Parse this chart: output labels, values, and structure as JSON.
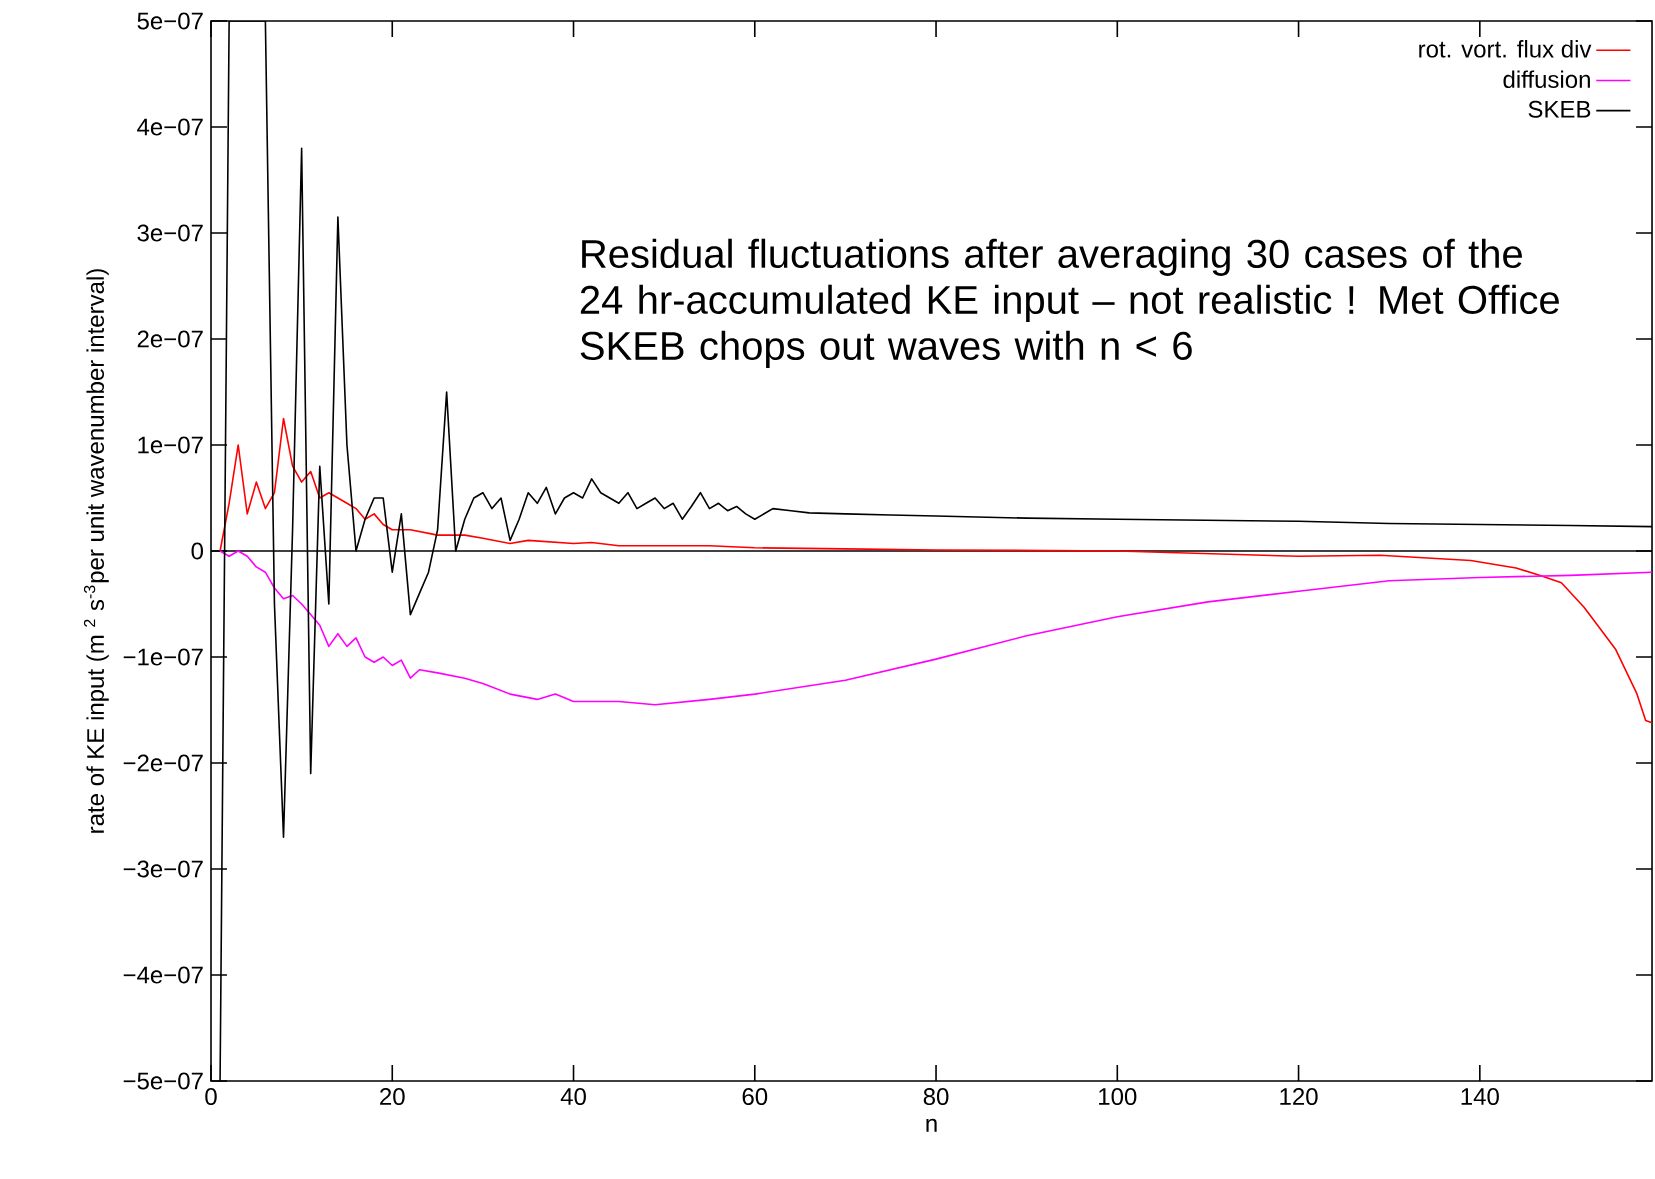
{
  "chart_data": {
    "type": "line",
    "xlabel": "n",
    "ylabel": "rate of KE input (m $^{2}$ s$^{-3}$per unit wavenumber interval)",
    "xlim": [
      0,
      159
    ],
    "xticks": [
      0,
      20,
      40,
      60,
      80,
      100,
      120,
      140
    ],
    "ylim": [
      -5e-07,
      5e-07
    ],
    "yticks": [
      {
        "value": -5e-07,
        "label": "−5e−07"
      },
      {
        "value": -4e-07,
        "label": "−4e−07"
      },
      {
        "value": -3e-07,
        "label": "−3e−07"
      },
      {
        "value": -2e-07,
        "label": "−2e−07"
      },
      {
        "value": -1e-07,
        "label": "−1e−07"
      },
      {
        "value": 0,
        "label": "0"
      },
      {
        "value": 1e-07,
        "label": "1e−07"
      },
      {
        "value": 2e-07,
        "label": "2e−07"
      },
      {
        "value": 3e-07,
        "label": "3e−07"
      },
      {
        "value": 4e-07,
        "label": "4e−07"
      },
      {
        "value": 5e-07,
        "label": "5e−07"
      }
    ],
    "legend": "top right",
    "ref_lines": [
      {
        "axis": "y",
        "value": 0,
        "color": "#000000"
      }
    ],
    "annotations": [
      "Residual fluctuations after averaging 30 cases of the 24 hr-accumulated KE input – not realistic ! Met Office SKEB chops out  waves with n < 6"
    ],
    "series": [
      {
        "name": "rot. vort. flux div",
        "color": "#ff0000",
        "x": [
          1,
          2,
          3,
          4,
          5,
          6,
          7,
          8,
          9,
          10,
          11,
          12,
          13,
          14,
          15,
          16,
          17,
          18,
          19,
          20,
          22,
          25,
          28,
          30,
          33,
          35,
          40,
          42,
          45,
          50,
          55,
          60,
          70,
          80,
          100,
          120,
          129,
          139,
          144,
          147,
          149,
          151.5,
          155,
          157.3,
          158.3,
          159
        ],
        "values": [
          0,
          4.5e-08,
          1e-07,
          3.5e-08,
          6.5e-08,
          4e-08,
          5.5e-08,
          1.25e-07,
          8e-08,
          6.5e-08,
          7.5e-08,
          5e-08,
          5.5e-08,
          5e-08,
          4.5e-08,
          4e-08,
          3e-08,
          3.5e-08,
          2.5e-08,
          2e-08,
          2e-08,
          1.5e-08,
          1.5e-08,
          1.2e-08,
          7e-09,
          1e-08,
          7e-09,
          8e-09,
          5e-09,
          5e-09,
          5e-09,
          3e-09,
          2e-09,
          1e-09,
          0,
          -5e-09,
          -4e-09,
          -9e-09,
          -1.6e-08,
          -2.4e-08,
          -3e-08,
          -5.3e-08,
          -9.3e-08,
          -1.34e-07,
          -1.6e-07,
          -1.62e-07
        ]
      },
      {
        "name": "diffusion",
        "color": "#ff00ff",
        "x": [
          1,
          2,
          3,
          4,
          5,
          6,
          7,
          8,
          9,
          10,
          11,
          12,
          13,
          14,
          15,
          16,
          17,
          18,
          19,
          20,
          21,
          22,
          23,
          25,
          28,
          30,
          33,
          36,
          38,
          40,
          45,
          49,
          55,
          60,
          70,
          80,
          90,
          100,
          110,
          120,
          130,
          140,
          150,
          159
        ],
        "values": [
          0,
          -5e-09,
          0,
          -5e-09,
          -1.5e-08,
          -2e-08,
          -3.5e-08,
          -4.5e-08,
          -4.2e-08,
          -5e-08,
          -6e-08,
          -7e-08,
          -9e-08,
          -7.8e-08,
          -9e-08,
          -8.2e-08,
          -1e-07,
          -1.05e-07,
          -1e-07,
          -1.08e-07,
          -1.03e-07,
          -1.2e-07,
          -1.12e-07,
          -1.15e-07,
          -1.2e-07,
          -1.25e-07,
          -1.35e-07,
          -1.4e-07,
          -1.35e-07,
          -1.42e-07,
          -1.42e-07,
          -1.45e-07,
          -1.4e-07,
          -1.35e-07,
          -1.22e-07,
          -1.02e-07,
          -8e-08,
          -6.2e-08,
          -4.8e-08,
          -3.8e-08,
          -2.8e-08,
          -2.5e-08,
          -2.3e-08,
          -2e-08
        ]
      },
      {
        "name": "SKEB",
        "color": "#000000",
        "x": [
          1,
          2,
          3,
          4,
          5,
          6,
          7,
          8,
          9,
          10,
          11,
          12,
          13,
          14,
          15,
          16,
          17,
          18,
          19,
          20,
          21,
          22,
          23,
          24,
          25,
          26,
          27,
          28,
          29,
          30,
          31,
          32,
          33,
          34,
          35,
          36,
          37,
          38,
          39,
          40,
          41,
          42,
          43,
          44,
          45,
          46,
          47,
          48,
          49,
          50,
          51,
          52,
          53,
          54,
          55,
          56,
          57,
          58,
          59,
          60,
          62,
          64,
          66,
          70,
          75,
          80,
          90,
          100,
          110,
          120,
          130,
          140,
          150,
          159
        ],
        "values": [
          -5e-07,
          5e-07,
          5e-07,
          5e-07,
          5e-07,
          5e-07,
          -5e-08,
          -2.7e-07,
          2e-08,
          3.8e-07,
          -2.1e-07,
          8e-08,
          -5e-08,
          3.15e-07,
          1e-07,
          0,
          3e-08,
          5e-08,
          5e-08,
          -2e-08,
          3.5e-08,
          -6e-08,
          -4e-08,
          -2e-08,
          2e-08,
          1.5e-07,
          0,
          3e-08,
          5e-08,
          5.5e-08,
          4e-08,
          5e-08,
          1e-08,
          3e-08,
          5.5e-08,
          4.5e-08,
          6e-08,
          3.5e-08,
          5e-08,
          5.5e-08,
          5e-08,
          6.8e-08,
          5.5e-08,
          5e-08,
          4.5e-08,
          5.5e-08,
          4e-08,
          4.5e-08,
          5e-08,
          4e-08,
          4.5e-08,
          3e-08,
          4.2e-08,
          5.5e-08,
          4e-08,
          4.5e-08,
          3.8e-08,
          4.2e-08,
          3.5e-08,
          3e-08,
          4e-08,
          3.8e-08,
          3.6e-08,
          3.5e-08,
          3.4e-08,
          3.3e-08,
          3.1e-08,
          3e-08,
          2.9e-08,
          2.8e-08,
          2.6e-08,
          2.5e-08,
          2.4e-08,
          2.3e-08
        ]
      }
    ]
  }
}
